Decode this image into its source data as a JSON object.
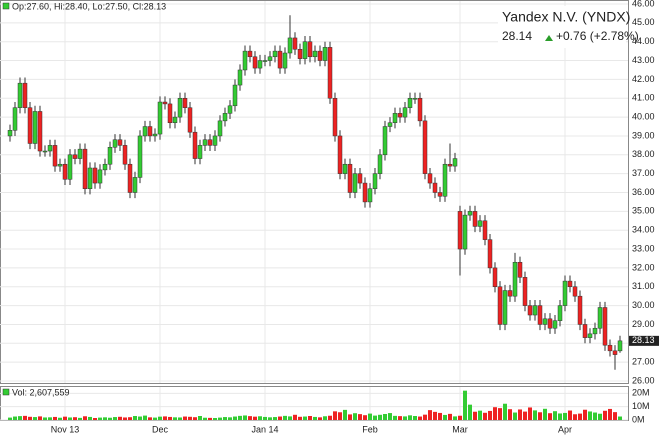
{
  "chart_data": {
    "type": "candlestick",
    "ohlc_text": "Op:27.60, Hi:28.40, Lo:27.50, Cl:28.13",
    "title": "Yandex N.V. (YNDX)",
    "last_price": "28.14",
    "change": "+0.76 (+2.78%)",
    "volume_text": "Vol: 2,607,559",
    "price_flag": {
      "value": 28.13,
      "label": "28.13"
    },
    "up_color": "#33cc33",
    "down_color": "#ee2222",
    "categories": [
      null,
      null,
      null,
      null,
      null,
      null,
      null,
      null,
      null,
      null,
      null,
      "Nov 13",
      null,
      null,
      null,
      null,
      null,
      null,
      null,
      null,
      null,
      null,
      null,
      null,
      null,
      null,
      null,
      null,
      null,
      null,
      "Dec",
      null,
      null,
      null,
      null,
      null,
      null,
      null,
      null,
      null,
      null,
      null,
      null,
      null,
      null,
      null,
      null,
      null,
      null,
      null,
      null,
      "Jan 14",
      null,
      null,
      null,
      null,
      null,
      null,
      null,
      null,
      null,
      null,
      null,
      null,
      null,
      null,
      null,
      null,
      null,
      null,
      null,
      null,
      "Feb",
      null,
      null,
      null,
      null,
      null,
      null,
      null,
      null,
      null,
      null,
      null,
      null,
      null,
      null,
      null,
      null,
      null,
      "Mar",
      null,
      null,
      null,
      null,
      null,
      null,
      null,
      null,
      null,
      null,
      null,
      null,
      null,
      null,
      null,
      null,
      null,
      null,
      null,
      null,
      "Apr",
      null,
      null,
      null,
      null,
      null,
      null,
      null,
      null,
      null,
      null,
      null
    ],
    "open": [
      39.0,
      39.3,
      40.5,
      41.8,
      40.5,
      38.6,
      40.3,
      38.2,
      38.2,
      38.5,
      37.4,
      37.5,
      36.7,
      38.0,
      37.8,
      38.3,
      36.2,
      37.3,
      36.5,
      37.2,
      37.5,
      38.4,
      38.8,
      38.5,
      37.5,
      36.0,
      36.8,
      39.0,
      39.5,
      39.0,
      39.1,
      40.8,
      40.7,
      39.7,
      40.0,
      41.0,
      40.5,
      39.2,
      37.8,
      38.5,
      38.8,
      38.5,
      39.0,
      39.8,
      40.2,
      40.6,
      41.7,
      42.5,
      43.5,
      43.2,
      42.6,
      43.0,
      43.0,
      43.2,
      43.5,
      42.6,
      43.4,
      44.2,
      43.6,
      43.1,
      44.0,
      43.2,
      43.5,
      43.0,
      43.7,
      41.0,
      39.0,
      37.0,
      37.5,
      36.0,
      37.0,
      36.5,
      35.5,
      36.2,
      37.0,
      38.0,
      39.5,
      39.7,
      40.2,
      40.0,
      40.5,
      41.0,
      41.0,
      39.8,
      37.0,
      36.5,
      36.0,
      35.8,
      37.5,
      37.4,
      35.0,
      33.0,
      34.8,
      35.0,
      34.2,
      34.5,
      33.5,
      32.0,
      31.0,
      29.0,
      30.8,
      30.5,
      32.3,
      31.5,
      30.0,
      29.5,
      30.0,
      29.0,
      29.3,
      28.8,
      29.2,
      30.0,
      31.3,
      31.0,
      30.5,
      29.0,
      28.3,
      28.5,
      28.8,
      29.9,
      27.9,
      27.6,
      27.6
    ],
    "high": [
      39.6,
      40.8,
      42.1,
      42.1,
      40.8,
      40.6,
      40.6,
      38.5,
      38.8,
      38.8,
      37.8,
      37.8,
      38.3,
      38.3,
      38.6,
      38.6,
      37.6,
      37.6,
      37.5,
      37.8,
      38.7,
      39.1,
      39.1,
      38.8,
      37.8,
      37.1,
      39.3,
      39.8,
      39.8,
      39.4,
      41.1,
      41.1,
      41.0,
      40.3,
      41.3,
      41.3,
      40.8,
      39.5,
      38.8,
      39.1,
      39.1,
      39.3,
      40.1,
      40.5,
      40.9,
      42.0,
      42.8,
      43.8,
      43.8,
      43.5,
      43.3,
      43.3,
      43.5,
      43.8,
      43.8,
      43.7,
      45.4,
      44.5,
      43.9,
      44.3,
      44.3,
      43.8,
      43.8,
      44.0,
      44.0,
      41.3,
      39.3,
      37.8,
      37.8,
      37.3,
      37.3,
      36.8,
      36.5,
      37.3,
      38.3,
      39.8,
      40.0,
      40.5,
      40.5,
      40.8,
      41.3,
      41.3,
      41.3,
      40.1,
      37.3,
      36.8,
      36.3,
      37.8,
      38.6,
      38.1,
      35.3,
      35.1,
      35.3,
      35.3,
      34.8,
      34.8,
      33.8,
      32.3,
      31.3,
      31.1,
      31.1,
      32.8,
      32.6,
      31.8,
      30.3,
      30.3,
      30.3,
      29.6,
      29.6,
      29.5,
      30.3,
      31.6,
      31.6,
      31.3,
      30.8,
      29.3,
      28.8,
      29.1,
      30.2,
      30.2,
      28.2,
      27.9,
      28.4
    ],
    "low": [
      38.7,
      39.0,
      40.2,
      40.2,
      38.3,
      38.3,
      37.9,
      37.9,
      37.9,
      37.1,
      37.1,
      36.4,
      36.4,
      37.5,
      37.5,
      35.9,
      35.9,
      36.2,
      36.2,
      36.9,
      37.2,
      38.1,
      38.2,
      37.2,
      35.7,
      35.7,
      36.5,
      38.7,
      38.7,
      38.7,
      38.8,
      40.4,
      39.4,
      39.4,
      39.7,
      40.2,
      38.9,
      37.5,
      37.5,
      38.2,
      38.2,
      38.2,
      38.7,
      39.5,
      39.9,
      40.3,
      41.4,
      42.2,
      42.9,
      42.3,
      42.3,
      42.7,
      42.7,
      42.9,
      42.3,
      42.3,
      43.1,
      43.3,
      42.8,
      42.8,
      42.9,
      42.9,
      42.7,
      42.7,
      40.7,
      38.7,
      36.7,
      36.7,
      35.7,
      35.7,
      36.2,
      35.2,
      35.2,
      35.9,
      36.7,
      37.7,
      39.2,
      39.4,
      39.7,
      39.7,
      40.2,
      40.7,
      39.5,
      36.7,
      36.2,
      35.7,
      35.5,
      35.5,
      37.1,
      37.1,
      31.6,
      32.7,
      34.5,
      33.9,
      33.9,
      33.2,
      31.7,
      30.7,
      28.7,
      28.7,
      30.2,
      30.2,
      31.2,
      29.7,
      29.2,
      29.2,
      28.7,
      28.7,
      28.5,
      28.5,
      28.9,
      29.7,
      30.7,
      30.2,
      28.7,
      28.0,
      28.0,
      28.2,
      28.5,
      27.6,
      27.3,
      26.6,
      27.5
    ],
    "close": [
      39.3,
      40.5,
      41.8,
      40.5,
      38.6,
      40.3,
      38.2,
      38.2,
      38.5,
      37.4,
      37.5,
      36.7,
      38.0,
      37.8,
      38.3,
      36.2,
      37.3,
      36.5,
      37.2,
      37.5,
      38.4,
      38.8,
      38.5,
      37.5,
      36.0,
      36.8,
      39.0,
      39.5,
      39.0,
      39.1,
      40.8,
      40.7,
      39.7,
      40.0,
      41.0,
      40.5,
      39.2,
      37.8,
      38.5,
      38.8,
      38.5,
      39.0,
      39.8,
      40.2,
      40.6,
      41.7,
      42.5,
      43.5,
      43.2,
      42.6,
      43.0,
      43.0,
      43.2,
      43.5,
      42.6,
      43.4,
      44.2,
      43.6,
      43.1,
      44.0,
      43.2,
      43.5,
      43.0,
      43.7,
      41.0,
      39.0,
      37.0,
      37.5,
      36.0,
      37.0,
      36.5,
      35.5,
      36.2,
      37.0,
      38.0,
      39.5,
      39.7,
      40.2,
      40.0,
      40.5,
      41.0,
      41.0,
      39.8,
      37.0,
      36.5,
      36.0,
      35.8,
      37.5,
      37.4,
      37.8,
      33.0,
      34.8,
      35.0,
      34.2,
      34.5,
      33.5,
      32.0,
      31.0,
      29.0,
      30.8,
      30.5,
      32.3,
      31.5,
      30.0,
      29.5,
      30.0,
      29.0,
      29.3,
      28.8,
      29.2,
      30.0,
      31.3,
      31.0,
      30.5,
      29.0,
      28.3,
      28.5,
      28.8,
      29.9,
      27.9,
      27.6,
      27.4,
      28.13
    ],
    "volume": [
      1800000,
      2600000,
      2900000,
      3100000,
      2400000,
      2200000,
      2700000,
      1900000,
      2000000,
      2300000,
      1700000,
      2500000,
      1900000,
      2100000,
      1600000,
      2800000,
      2300000,
      1500000,
      1800000,
      2000000,
      1700000,
      2200000,
      2400000,
      1900000,
      2100000,
      3000000,
      2600000,
      3300000,
      2000000,
      1800000,
      2500000,
      2700000,
      2300000,
      2000000,
      1900000,
      2600000,
      2400000,
      2100000,
      3000000,
      1700000,
      1600000,
      1500000,
      1800000,
      2200000,
      2000000,
      2600000,
      3100000,
      3400000,
      2900000,
      2500000,
      2800000,
      2300000,
      2000000,
      2200000,
      2600000,
      3100000,
      2700000,
      3900000,
      2400000,
      2600000,
      3000000,
      2300000,
      2000000,
      2800000,
      3200000,
      6500000,
      5800000,
      7600000,
      4200000,
      5100000,
      4400000,
      3600000,
      4800000,
      3300000,
      3900000,
      4500000,
      5200000,
      3100000,
      2900000,
      2700000,
      3500000,
      3000000,
      2600000,
      4000000,
      7400000,
      6100000,
      5300000,
      3800000,
      4600000,
      2700000,
      3200000,
      22000000,
      11500000,
      6200000,
      7000000,
      5400000,
      6800000,
      9600000,
      8900000,
      12200000,
      8100000,
      5600000,
      7900000,
      6300000,
      9400000,
      7200000,
      5800000,
      8400000,
      5100000,
      6600000,
      4900000,
      5300000,
      7100000,
      4300000,
      4800000,
      7700000,
      6400000,
      5600000,
      4700000,
      6900000,
      8300000,
      5900000,
      2607559
    ],
    "ylim": [
      26,
      46
    ],
    "yticks": [
      {
        "value": 26,
        "label": "26.00"
      },
      {
        "value": 27,
        "label": "27.00"
      },
      {
        "value": 28,
        "label": "28.00"
      },
      {
        "value": 29,
        "label": "29.00"
      },
      {
        "value": 30,
        "label": "30.00"
      },
      {
        "value": 31,
        "label": "31.00"
      },
      {
        "value": 32,
        "label": "32.00"
      },
      {
        "value": 33,
        "label": "33.00"
      },
      {
        "value": 34,
        "label": "34.00"
      },
      {
        "value": 35,
        "label": "35.00"
      },
      {
        "value": 36,
        "label": "36.00"
      },
      {
        "value": 37,
        "label": "37.00"
      },
      {
        "value": 38,
        "label": "38.00"
      },
      {
        "value": 39,
        "label": "39.00"
      },
      {
        "value": 40,
        "label": "40.00"
      },
      {
        "value": 41,
        "label": "41.00"
      },
      {
        "value": 42,
        "label": "42.00"
      },
      {
        "value": 43,
        "label": "43.00"
      },
      {
        "value": 44,
        "label": "44.00"
      },
      {
        "value": 45,
        "label": "45.00"
      },
      {
        "value": 46,
        "label": "46.00"
      }
    ],
    "volume_ylim": [
      0,
      24000000
    ],
    "volume_yticks": [
      {
        "value": 0,
        "label": "0M"
      },
      {
        "value": 10000000,
        "label": "10M"
      },
      {
        "value": 20000000,
        "label": "20M"
      }
    ],
    "grid": true
  }
}
